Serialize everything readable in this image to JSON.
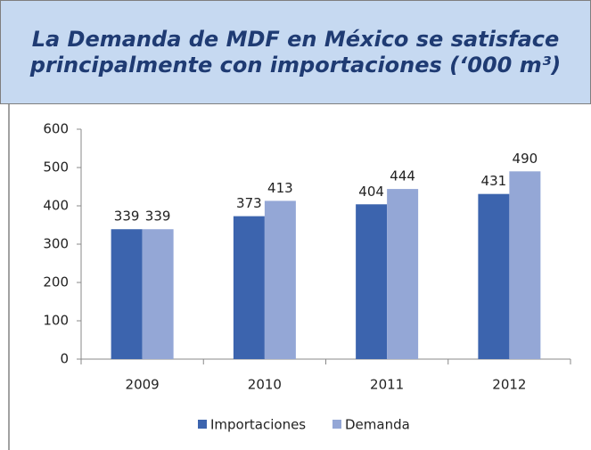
{
  "chart_data": {
    "type": "bar",
    "title": "La Demanda de MDF en México se satisface principalmente con importaciones (‘000 m³)",
    "categories": [
      "2009",
      "2010",
      "2011",
      "2012"
    ],
    "series": [
      {
        "name": "Importaciones",
        "color": "#3c64ae",
        "values": [
          339,
          373,
          404,
          431
        ]
      },
      {
        "name": "Demanda",
        "color": "#94a7d6",
        "values": [
          339,
          413,
          444,
          490
        ]
      }
    ],
    "ylim": [
      0,
      600
    ],
    "yticks": [
      0,
      100,
      200,
      300,
      400,
      500,
      600
    ],
    "legend": "bottom",
    "grid": false
  }
}
